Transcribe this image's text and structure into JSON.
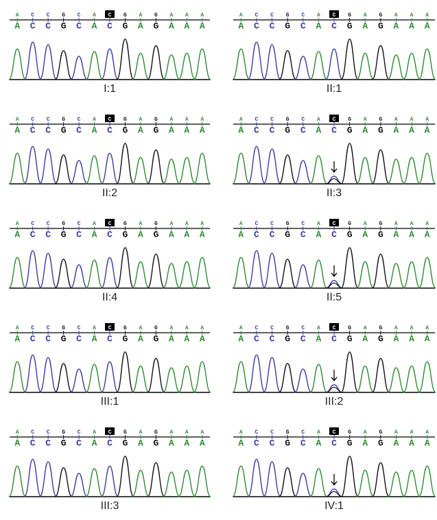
{
  "panels": [
    {
      "label": "I:1",
      "bases": [
        "A",
        "C",
        "C",
        "G",
        "C",
        "A",
        "C",
        "G",
        "A",
        "G",
        "A",
        "A",
        "A"
      ],
      "highlight": 6,
      "arrow": false
    },
    {
      "label": "II:1",
      "bases": [
        "A",
        "C",
        "C",
        "G",
        "C",
        "A",
        "C",
        "G",
        "A",
        "G",
        "A",
        "A",
        "A"
      ],
      "highlight": 6,
      "arrow": false
    },
    {
      "label": "II:2",
      "bases": [
        "A",
        "C",
        "C",
        "G",
        "C",
        "A",
        "C",
        "G",
        "A",
        "G",
        "A",
        "A",
        "A"
      ],
      "highlight": 6,
      "arrow": false
    },
    {
      "label": "II:3",
      "bases": [
        "A",
        "C",
        "C",
        "G",
        "C",
        "A",
        "C",
        "G",
        "A",
        "G",
        "A",
        "A",
        "A"
      ],
      "highlight": 6,
      "arrow": true
    },
    {
      "label": "II:4",
      "bases": [
        "A",
        "C",
        "C",
        "G",
        "C",
        "A",
        "C",
        "G",
        "A",
        "G",
        "A",
        "A",
        "A"
      ],
      "highlight": 6,
      "arrow": false
    },
    {
      "label": "II:5",
      "bases": [
        "A",
        "C",
        "C",
        "G",
        "C",
        "A",
        "C",
        "G",
        "A",
        "G",
        "A",
        "A",
        "A"
      ],
      "highlight": 6,
      "arrow": true
    },
    {
      "label": "III:1",
      "bases": [
        "A",
        "C",
        "C",
        "G",
        "C",
        "A",
        "C",
        "G",
        "A",
        "G",
        "A",
        "A",
        "A"
      ],
      "highlight": 6,
      "arrow": false
    },
    {
      "label": "III:2",
      "bases": [
        "A",
        "C",
        "C",
        "G",
        "C",
        "A",
        "C",
        "G",
        "A",
        "G",
        "A",
        "A",
        "A"
      ],
      "highlight": 6,
      "arrow": true
    },
    {
      "label": "III:3",
      "bases": [
        "A",
        "C",
        "C",
        "G",
        "C",
        "A",
        "C",
        "G",
        "A",
        "G",
        "A",
        "A",
        "A"
      ],
      "highlight": 6,
      "arrow": false
    },
    {
      "label": "IV:1",
      "bases": [
        "A",
        "C",
        "C",
        "G",
        "C",
        "A",
        "C",
        "G",
        "A",
        "G",
        "A",
        "A",
        "A"
      ],
      "highlight": 6,
      "arrow": true
    }
  ]
}
